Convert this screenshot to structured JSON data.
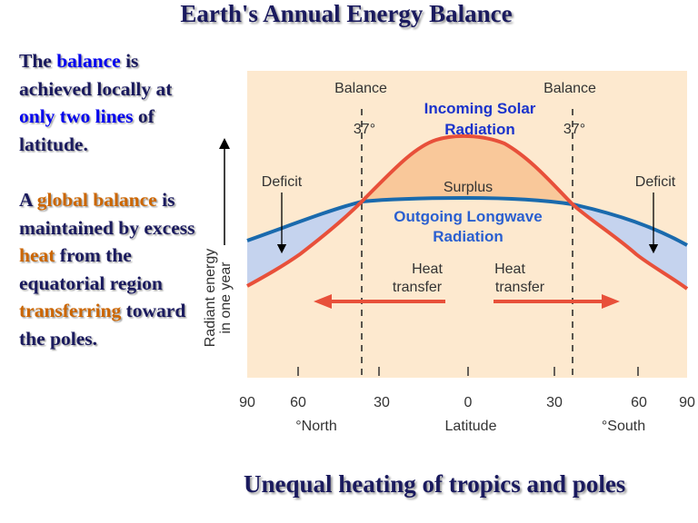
{
  "title": "Earth's Annual Energy Balance",
  "left_text": {
    "p1": [
      "The ",
      "balance",
      " is achieved locally at ",
      "only two lines",
      " of latitude."
    ],
    "p2": [
      "A ",
      "global balance",
      " is maintained by excess ",
      "heat",
      " from the equatorial region ",
      "transferring",
      " toward the poles."
    ]
  },
  "diagram": {
    "balance_left": "Balance",
    "balance_right": "Balance",
    "deg_left": "37°",
    "deg_right": "37°",
    "incoming_line1": "Incoming Solar",
    "incoming_line2": "Radiation",
    "outgoing_line1": "Outgoing Longwave",
    "outgoing_line2": "Radiation",
    "surplus": "Surplus",
    "deficit_left": "Deficit",
    "deficit_right": "Deficit",
    "heat_left_1": "Heat",
    "heat_left_2": "transfer",
    "heat_right_1": "Heat",
    "heat_right_2": "transfer",
    "y_label_1": "Radiant energy",
    "y_label_2": "in one year",
    "x_ticks": [
      "90",
      "60",
      "30",
      "0",
      "30",
      "60",
      "90"
    ],
    "north": "°North",
    "xlabel": "Latitude",
    "south": "°South",
    "colors": {
      "background": "#fde9cf",
      "surplus": "#f9c89a",
      "deficit": "#c5d3ee",
      "incoming": "#e8503a",
      "outgoing": "#1a6aad",
      "incoming_label": "#1a33cc",
      "outgoing_label": "#2a5fd0"
    }
  },
  "footer": "Unequal heating of tropics and poles"
}
